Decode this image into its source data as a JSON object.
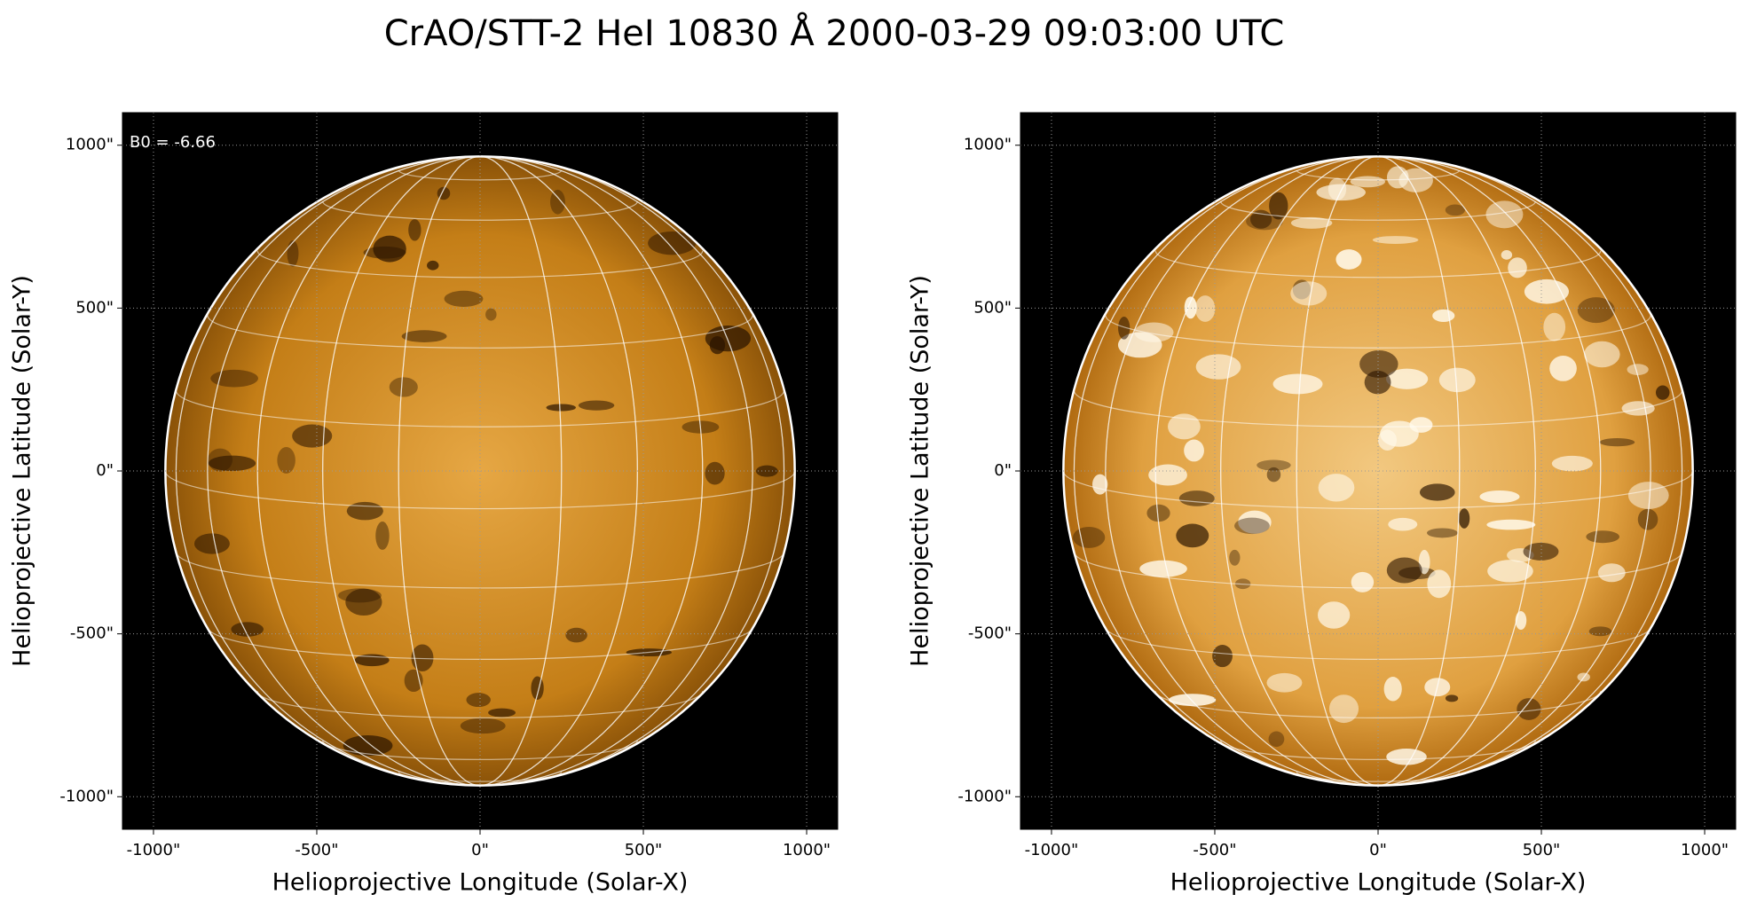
{
  "title": "CrAO/STT-2 HeI 10830 Å 2000-03-29 09:03:00 UTC",
  "chart_data": [
    {
      "type": "image",
      "annotation": "B0 = -6.66",
      "color": "#c47e17",
      "xlabel": "Helioprojective Longitude (Solar-X)",
      "ylabel": "Helioprojective Latitude (Solar-Y)",
      "xlim": [
        -1095,
        1095
      ],
      "ylim": [
        -1100,
        1100
      ],
      "grid": true,
      "xticks": [
        {
          "value": -1000,
          "label": "-1000\""
        },
        {
          "value": -500,
          "label": "-500\""
        },
        {
          "value": 0,
          "label": "0\""
        },
        {
          "value": 500,
          "label": "500\""
        },
        {
          "value": 1000,
          "label": "1000\""
        }
      ],
      "yticks": [
        {
          "value": -1000,
          "label": "-1000\""
        },
        {
          "value": -500,
          "label": "-500\""
        },
        {
          "value": 0,
          "label": "0\""
        },
        {
          "value": 500,
          "label": "500\""
        },
        {
          "value": 1000,
          "label": "1000\""
        }
      ]
    },
    {
      "type": "image",
      "color": "#e0a040",
      "xlabel": "Helioprojective Longitude (Solar-X)",
      "ylabel": "Helioprojective Latitude (Solar-Y)",
      "xlim": [
        -1095,
        1095
      ],
      "ylim": [
        -1100,
        1100
      ],
      "grid": true,
      "xticks": [
        {
          "value": -1000,
          "label": "-1000\""
        },
        {
          "value": -500,
          "label": "-500\""
        },
        {
          "value": 0,
          "label": "0\""
        },
        {
          "value": 500,
          "label": "500\""
        },
        {
          "value": 1000,
          "label": "1000\""
        }
      ],
      "yticks": [
        {
          "value": -1000,
          "label": "-1000\""
        },
        {
          "value": -500,
          "label": "-500\""
        },
        {
          "value": 0,
          "label": "0\""
        },
        {
          "value": 500,
          "label": "500\""
        },
        {
          "value": 1000,
          "label": "1000\""
        }
      ]
    }
  ]
}
